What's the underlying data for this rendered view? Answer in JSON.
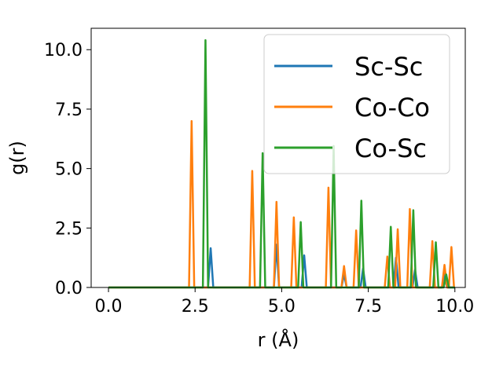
{
  "chart_data": {
    "type": "line",
    "xlabel": "r (Å)",
    "ylabel": "g(r)",
    "xlim": [
      -0.5,
      10.3
    ],
    "ylim": [
      0,
      10.9
    ],
    "xticks": [
      "0.0",
      "2.5",
      "5.0",
      "7.5",
      "10.0"
    ],
    "yticks": [
      "0.0",
      "2.5",
      "5.0",
      "7.5",
      "10.0"
    ],
    "legend_position": "top-right",
    "series": [
      {
        "name": "Sc-Sc",
        "color": "#1f77b4",
        "peaks": [
          [
            2.95,
            1.65
          ],
          [
            4.85,
            1.8
          ],
          [
            5.65,
            1.35
          ],
          [
            6.8,
            0.55
          ],
          [
            7.35,
            0.8
          ],
          [
            8.3,
            1.25
          ],
          [
            8.85,
            0.75
          ],
          [
            9.7,
            0.55
          ]
        ]
      },
      {
        "name": "Co-Co",
        "color": "#ff7f0e",
        "peaks": [
          [
            2.4,
            7.0
          ],
          [
            4.15,
            4.9
          ],
          [
            4.85,
            3.6
          ],
          [
            5.35,
            2.95
          ],
          [
            6.35,
            4.2
          ],
          [
            6.8,
            0.9
          ],
          [
            7.15,
            2.4
          ],
          [
            8.05,
            1.3
          ],
          [
            8.35,
            2.45
          ],
          [
            8.7,
            3.3
          ],
          [
            9.35,
            1.95
          ],
          [
            9.7,
            0.95
          ],
          [
            9.9,
            1.7
          ]
        ]
      },
      {
        "name": "Co-Sc",
        "color": "#2ca02c",
        "peaks": [
          [
            2.8,
            10.4
          ],
          [
            4.45,
            5.65
          ],
          [
            5.55,
            2.75
          ],
          [
            6.5,
            5.95
          ],
          [
            7.3,
            3.65
          ],
          [
            8.15,
            2.55
          ],
          [
            8.8,
            3.25
          ],
          [
            9.45,
            1.9
          ],
          [
            9.75,
            0.55
          ]
        ]
      }
    ]
  }
}
